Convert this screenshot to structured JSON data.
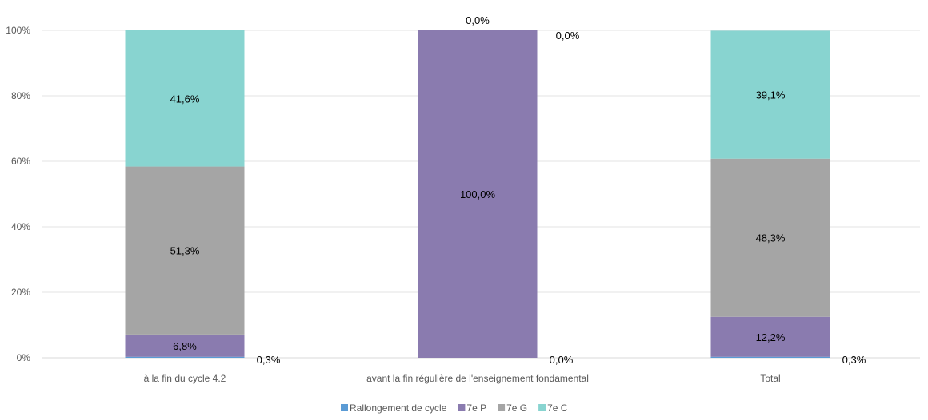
{
  "chart_data": {
    "type": "bar",
    "stacked": true,
    "percent": true,
    "categories": [
      "à la fin du cycle 4.2",
      "avant la fin régulière de l'enseignement fondamental",
      "Total"
    ],
    "series": [
      {
        "name": "Rallongement de cycle",
        "color": "#5B9BD5",
        "values": [
          0.3,
          0.0,
          0.3
        ],
        "labels": [
          "0,3%",
          "0,0%",
          "0,3%"
        ]
      },
      {
        "name": "7e P",
        "color": "#8A7BAF",
        "values": [
          6.8,
          100.0,
          12.2
        ],
        "labels": [
          "6,8%",
          "100,0%",
          "12,2%"
        ]
      },
      {
        "name": "7e G",
        "color": "#A5A5A5",
        "values": [
          51.3,
          0.0,
          48.3
        ],
        "labels": [
          "51,3%",
          "",
          "48,3%"
        ]
      },
      {
        "name": "7e C",
        "color": "#88D4D0",
        "values": [
          41.6,
          0.0,
          39.1
        ],
        "labels": [
          "41,6%",
          "0,0%",
          "39,1%"
        ]
      }
    ],
    "extra_labels": [
      "0,0%"
    ],
    "ylim": [
      0,
      100
    ],
    "yticks": [
      "0%",
      "20%",
      "40%",
      "60%",
      "80%",
      "100%"
    ],
    "legend_position": "bottom",
    "grid": true
  }
}
